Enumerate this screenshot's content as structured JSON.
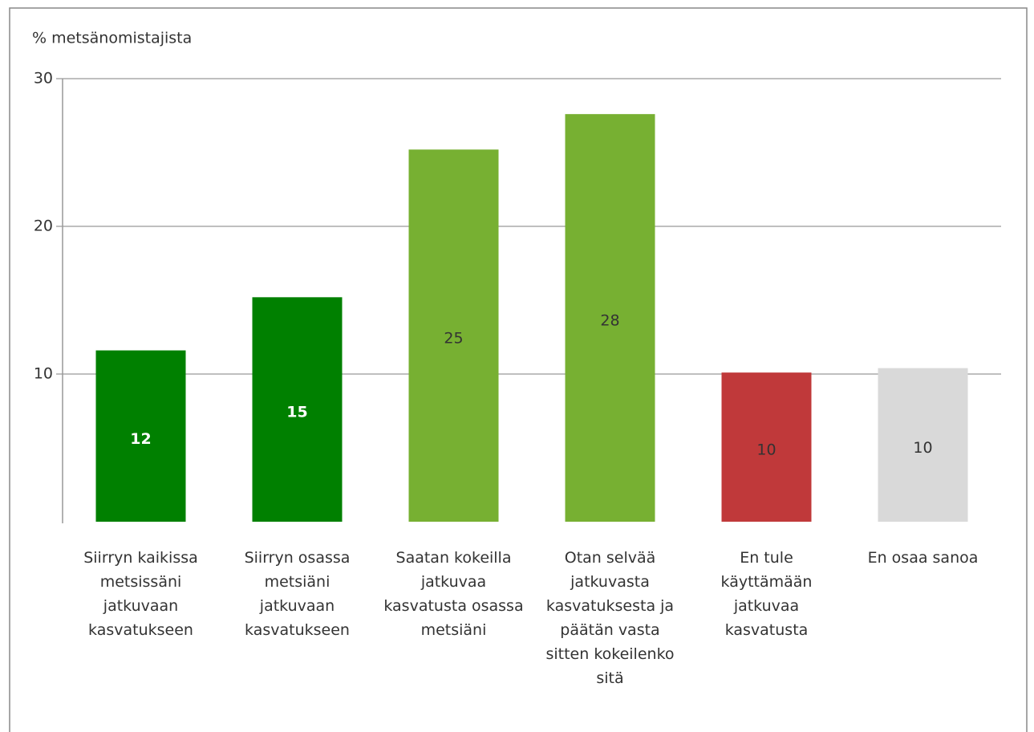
{
  "chart_data": {
    "type": "bar",
    "y_axis_label": "% metsänomistajista",
    "categories": [
      "Siirryn kaikissa metsissäni jatkuvaan kasvatukseen",
      "Siirryn osassa metsiäni jatkuvaan kasvatukseen",
      "Saatan kokeilla jatkuvaa kasvatusta osassa metsiäni",
      "Otan selvää jatkuvasta kasvatuksesta ja päätän vasta sitten kokeilenko sitä",
      "En tule käyttämään jatkuvaa kasvatusta",
      "En osaa sanoa"
    ],
    "values": [
      11.6,
      15.2,
      25.2,
      27.6,
      10.1,
      10.4
    ],
    "value_labels": [
      "12",
      "15",
      "25",
      "28",
      "10",
      "10"
    ],
    "colors": [
      "#008000",
      "#008000",
      "#77b032",
      "#77b032",
      "#c0393a",
      "#d9d9d9"
    ],
    "value_label_colors": [
      "#ffffff",
      "#ffffff",
      "#333333",
      "#333333",
      "#333333",
      "#333333"
    ],
    "ylim": [
      0,
      30
    ],
    "yticks": [
      10,
      20,
      30
    ],
    "grid": true
  }
}
